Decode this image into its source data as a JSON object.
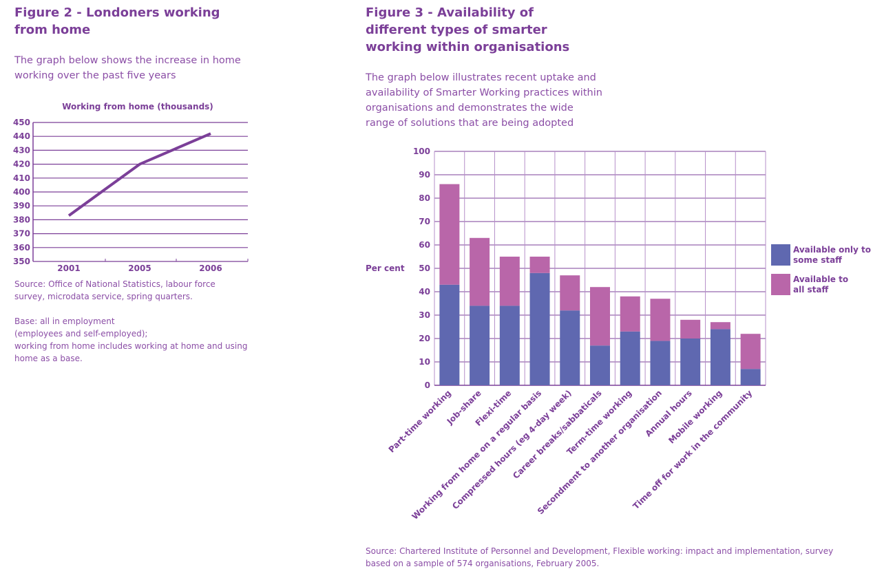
{
  "figure2": {
    "title": "Figure 2 - Londoners working from home",
    "intro": "The graph below shows the increase in home working over the past five years",
    "source": "Source: Office of National Statistics, labour force survey, microdata service, spring quarters.",
    "base_lines": [
      "Base: all in employment",
      "(employees and self-employed);",
      "working from home includes working at home and using home as a base."
    ]
  },
  "figure3": {
    "title": "Figure 3 - Availability of different types of smarter working within organisations",
    "intro": "The graph below illustrates recent uptake and availability of Smarter Working practices within organisations and demonstrates the wide range of solutions that are being adopted",
    "source": "Source: Chartered Institute of Personnel and Development, Flexible working: impact and implementation, survey based on a sample of 574 organisations, February 2005."
  },
  "chart_data": [
    {
      "type": "line",
      "title": "Working from home (thousands)",
      "x": [
        "2001",
        "2005",
        "2006"
      ],
      "values": [
        383,
        420,
        442
      ],
      "ylim": [
        350,
        450
      ],
      "yticks": [
        350,
        360,
        370,
        380,
        390,
        400,
        410,
        420,
        430,
        440,
        450
      ],
      "color": "#7b3f98",
      "grid": true
    },
    {
      "type": "bar",
      "stacked": true,
      "ylabel": "Per cent",
      "ylim": [
        0,
        100
      ],
      "yticks": [
        0,
        10,
        20,
        30,
        40,
        50,
        60,
        70,
        80,
        90,
        100
      ],
      "categories": [
        "Part-time working",
        "Job-share",
        "Flexi-time",
        "Working from home on a regular basis",
        "Compressed hours (eg 4-day week)",
        "Career breaks/sabbaticals",
        "Term-time working",
        "Secondment to another organisation",
        "Annual hours",
        "Mobile working",
        "Time off for work in the community"
      ],
      "series": [
        {
          "name": "Available only to some staff",
          "color": "#5f68b0",
          "values": [
            43,
            34,
            34,
            48,
            32,
            17,
            23,
            19,
            20,
            24,
            7
          ]
        },
        {
          "name": "Available to all staff",
          "color": "#b966a9",
          "values": [
            43,
            29,
            21,
            7,
            15,
            25,
            15,
            18,
            8,
            3,
            15
          ]
        }
      ],
      "legend": "right",
      "grid": true
    }
  ]
}
